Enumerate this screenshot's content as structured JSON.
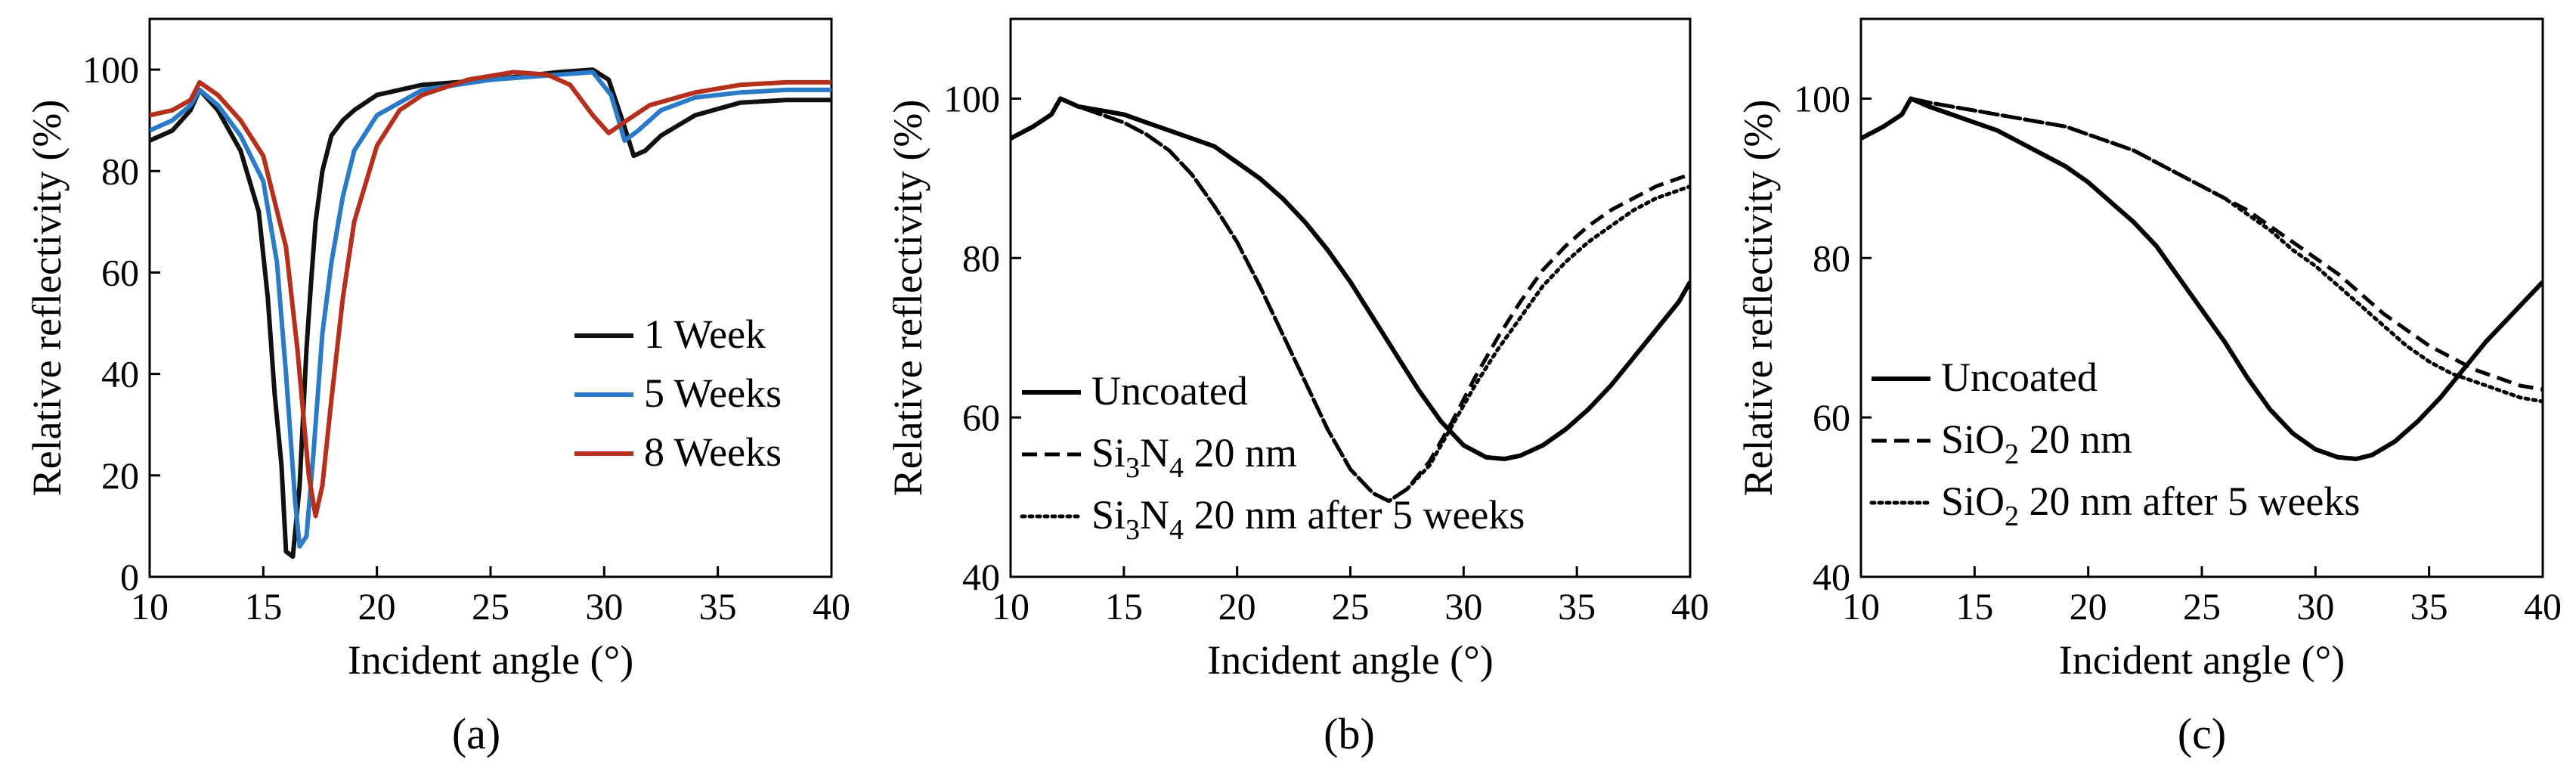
{
  "figure": {
    "panels": [
      {
        "panel_label": "(a)",
        "chart_data": {
          "type": "line",
          "xlabel": "Incident angle (°)",
          "ylabel": "Relative reflectivity (%)",
          "xlim": [
            10,
            40
          ],
          "ylim": [
            0,
            110
          ],
          "xticks": [
            10,
            15,
            20,
            25,
            30,
            35,
            40
          ],
          "yticks": [
            0,
            20,
            40,
            60,
            80,
            100
          ],
          "legend_position": "center-right",
          "series": [
            {
              "name": "1 Week",
              "legend_label": "1 Week",
              "color": "#111111",
              "dash": "solid",
              "x": [
                10,
                11,
                11.8,
                12.2,
                13,
                14,
                14.8,
                15.2,
                15.5,
                15.8,
                16.0,
                16.3,
                16.6,
                16.9,
                17.1,
                17.3,
                17.6,
                18.0,
                18.5,
                19,
                20,
                22,
                25,
                28,
                29.5,
                30.2,
                30.8,
                31.3,
                31.8,
                32.5,
                34,
                36,
                38,
                40
              ],
              "y": [
                86,
                88,
                92,
                96,
                92,
                84,
                72,
                55,
                36,
                22,
                5,
                4,
                18,
                45,
                58,
                70,
                80,
                87,
                90,
                92,
                95,
                97,
                98,
                99.5,
                100,
                98,
                90,
                83,
                84,
                87,
                91,
                93.5,
                94,
                94
              ]
            },
            {
              "name": "5 Weeks",
              "legend_label": "5 Weeks",
              "color": "#2a7ac8",
              "dash": "solid",
              "x": [
                10,
                11,
                11.8,
                12.2,
                13,
                14,
                15,
                15.6,
                16.0,
                16.4,
                16.6,
                16.9,
                17.2,
                17.6,
                18.0,
                18.5,
                19,
                20,
                22,
                25,
                28,
                29.5,
                30.3,
                30.9,
                31.5,
                32.5,
                34,
                36,
                38,
                40
              ],
              "y": [
                88,
                90,
                93,
                96,
                93,
                87,
                78,
                62,
                40,
                15,
                6,
                8,
                24,
                48,
                62,
                75,
                84,
                91,
                96,
                98,
                99,
                99.5,
                95,
                86,
                88,
                92,
                94.5,
                95.5,
                96,
                96
              ]
            },
            {
              "name": "8 Weeks",
              "legend_label": "8 Weeks",
              "color": "#b5301c",
              "dash": "solid",
              "x": [
                10,
                11,
                11.8,
                12.2,
                13,
                14,
                15,
                16,
                16.5,
                17.0,
                17.3,
                17.6,
                18.0,
                18.5,
                19,
                20,
                21,
                22,
                24,
                26,
                27.5,
                28.5,
                29.5,
                30.2,
                31,
                32,
                34,
                36,
                38,
                40
              ],
              "y": [
                91,
                92,
                94,
                97.5,
                95,
                90,
                83,
                65,
                45,
                20,
                12,
                18,
                35,
                55,
                70,
                85,
                92,
                95,
                98,
                99.5,
                99,
                97,
                91,
                87.5,
                90,
                93,
                95.5,
                97,
                97.5,
                97.5
              ]
            }
          ]
        }
      },
      {
        "panel_label": "(b)",
        "chart_data": {
          "type": "line",
          "xlabel": "Incident angle (°)",
          "ylabel": "Relative reflectivity (%)",
          "xlim": [
            10,
            40
          ],
          "ylim": [
            40,
            110
          ],
          "xticks": [
            10,
            15,
            20,
            25,
            30,
            35,
            40
          ],
          "yticks": [
            40,
            60,
            80,
            100
          ],
          "legend_position": "lower-center",
          "series": [
            {
              "name": "Uncoated",
              "legend_label": "Uncoated",
              "legend_sub": "",
              "legend_suffix": "",
              "color": "#000000",
              "dash": "solid",
              "x": [
                10,
                11,
                11.8,
                12.2,
                13,
                14,
                15,
                16,
                17,
                18,
                19,
                20,
                21,
                22,
                23,
                24,
                25,
                26,
                27,
                28,
                29,
                30,
                31,
                31.8,
                32.5,
                33.5,
                34.5,
                35.5,
                36.5,
                37.5,
                38.5,
                39.5,
                40
              ],
              "y": [
                95,
                96.5,
                98,
                100,
                99,
                98.5,
                98,
                97,
                96,
                95,
                94,
                92,
                90,
                87.5,
                84.5,
                81,
                77,
                72.5,
                68,
                63.5,
                59.5,
                56.5,
                55,
                54.8,
                55.2,
                56.5,
                58.5,
                61,
                64,
                67.5,
                71,
                74.5,
                77
              ]
            },
            {
              "name": "Si3N4 20 nm",
              "legend_label": "Si",
              "legend_sub": "3",
              "legend_label_2": "N",
              "legend_sub_2": "4",
              "legend_suffix": " 20 nm",
              "color": "#000000",
              "dash": "dashed",
              "x": [
                10,
                11,
                11.8,
                12.2,
                13,
                14,
                15,
                16,
                17,
                18,
                19,
                20,
                21,
                22,
                23,
                24,
                25,
                26,
                26.7,
                27.5,
                28.5,
                29.5,
                30.5,
                31.5,
                32.5,
                33.5,
                34.5,
                35.5,
                36.5,
                37.5,
                38.5,
                39.5,
                40
              ],
              "y": [
                95,
                96.5,
                98,
                100,
                99,
                98,
                97,
                95.5,
                93.5,
                90.5,
                86.5,
                82,
                76.5,
                70.5,
                64.5,
                58.5,
                53.5,
                50.5,
                49.5,
                51,
                54.5,
                59.5,
                65,
                70,
                74.5,
                78.5,
                81.5,
                84,
                86,
                87.5,
                89,
                90,
                90.5
              ]
            },
            {
              "name": "Si3N4 20 nm after 5 weeks",
              "legend_label": "Si",
              "legend_sub": "3",
              "legend_label_2": "N",
              "legend_sub_2": "4",
              "legend_suffix": " 20 nm after 5 weeks",
              "color": "#000000",
              "dash": "dotted",
              "x": [
                10,
                11,
                11.8,
                12.2,
                13,
                14,
                15,
                16,
                17,
                18,
                19,
                20,
                21,
                22,
                23,
                24,
                25,
                26,
                26.7,
                27.5,
                28.5,
                29.5,
                30.5,
                31.5,
                32.5,
                33.5,
                34.5,
                35.5,
                36.5,
                37.5,
                38.5,
                39.5,
                40
              ],
              "y": [
                95,
                96.5,
                98,
                100,
                99,
                98,
                97,
                95.5,
                93.5,
                90.5,
                86.5,
                82,
                76.5,
                70.5,
                64.5,
                58.5,
                53.5,
                50.5,
                49.5,
                51,
                54,
                59,
                64,
                68.5,
                72.5,
                76.5,
                79.5,
                82,
                84,
                86,
                87.5,
                88.5,
                89
              ]
            }
          ]
        }
      },
      {
        "panel_label": "(c)",
        "chart_data": {
          "type": "line",
          "xlabel": "Incident angle (°)",
          "ylabel": "Relative reflectivity (%)",
          "xlim": [
            10,
            40
          ],
          "ylim": [
            40,
            110
          ],
          "xticks": [
            10,
            15,
            20,
            25,
            30,
            35,
            40
          ],
          "yticks": [
            40,
            60,
            80,
            100
          ],
          "legend_position": "lower-left",
          "series": [
            {
              "name": "Uncoated",
              "legend_label": "Uncoated",
              "legend_sub": "",
              "legend_suffix": "",
              "color": "#000000",
              "dash": "solid",
              "x": [
                10,
                11,
                11.8,
                12.2,
                13,
                14,
                15,
                16,
                17,
                18,
                19,
                20,
                21,
                22,
                23,
                24,
                25,
                26,
                27,
                28,
                29,
                30,
                31,
                31.8,
                32.5,
                33.5,
                34.5,
                35.5,
                36.5,
                37.5,
                38.5,
                39.5,
                40
              ],
              "y": [
                95,
                96.5,
                98,
                100,
                99,
                98,
                97,
                96,
                94.5,
                93,
                91.5,
                89.5,
                87,
                84.5,
                81.5,
                77.5,
                73.5,
                69.5,
                65,
                61,
                58,
                56,
                55,
                54.8,
                55.3,
                57,
                59.5,
                62.5,
                66,
                69.5,
                72.5,
                75.5,
                77
              ]
            },
            {
              "name": "SiO2 20 nm",
              "legend_label": "SiO",
              "legend_sub": "2",
              "legend_suffix": " 20 nm",
              "color": "#000000",
              "dash": "dashed",
              "x": [
                10,
                11,
                11.8,
                12.2,
                13,
                14,
                15,
                16,
                17,
                18,
                19,
                20,
                21,
                22,
                23,
                24,
                25,
                26,
                27,
                28,
                29,
                30,
                31,
                32,
                33,
                34,
                35,
                36,
                37,
                38,
                39,
                40
              ],
              "y": [
                95,
                96.5,
                98,
                100,
                99.5,
                99,
                98.5,
                98,
                97.5,
                97,
                96.5,
                95.5,
                94.5,
                93.5,
                92,
                90.5,
                89,
                87.5,
                86,
                84,
                82,
                80,
                78,
                75.5,
                73,
                71,
                69,
                67.5,
                66,
                65,
                64,
                63.5
              ]
            },
            {
              "name": "SiO2 20 nm after 5 weeks",
              "legend_label": "SiO",
              "legend_sub": "2",
              "legend_suffix": " 20 nm after 5 weeks",
              "color": "#000000",
              "dash": "dotted",
              "x": [
                10,
                11,
                11.8,
                12.2,
                13,
                14,
                15,
                16,
                17,
                18,
                19,
                20,
                21,
                22,
                23,
                24,
                25,
                26,
                27,
                28,
                29,
                30,
                31,
                32,
                33,
                34,
                35,
                36,
                37,
                38,
                39,
                40
              ],
              "y": [
                95,
                96.5,
                98,
                100,
                99.5,
                99,
                98.5,
                98,
                97.5,
                97,
                96.5,
                95.5,
                94.5,
                93.5,
                92,
                90.5,
                89,
                87.5,
                85.5,
                83.5,
                81,
                79,
                76.5,
                74,
                71.5,
                69,
                67,
                65.5,
                64.5,
                63.5,
                62.5,
                62
              ]
            }
          ]
        }
      }
    ]
  }
}
